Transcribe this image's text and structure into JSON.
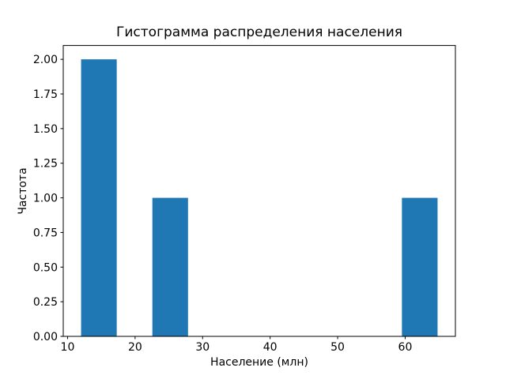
{
  "chart_data": {
    "type": "bar",
    "title": "Гистограмма распределения населения",
    "xlabel": "Население (млн)",
    "ylabel": "Частота",
    "x_tick_labels": [
      "10",
      "20",
      "30",
      "40",
      "50",
      "60"
    ],
    "y_tick_labels": [
      "0.00",
      "0.25",
      "0.50",
      "0.75",
      "1.00",
      "1.25",
      "1.50",
      "1.75",
      "2.00"
    ],
    "xlim": [
      9.36,
      67.44
    ],
    "ylim": [
      0,
      2.1
    ],
    "bar_color": "#1f77b4",
    "axis_color": "#000000",
    "grid": false,
    "legend": null,
    "bars": [
      {
        "bin_start": 12.0,
        "bin_end": 17.28,
        "frequency": 2
      },
      {
        "bin_start": 22.56,
        "bin_end": 27.84,
        "frequency": 1
      },
      {
        "bin_start": 59.52,
        "bin_end": 64.8,
        "frequency": 1
      }
    ]
  }
}
